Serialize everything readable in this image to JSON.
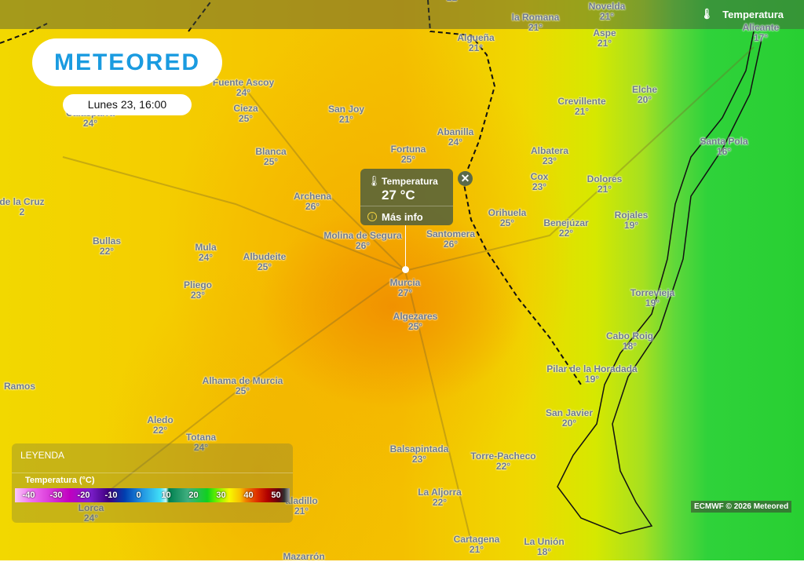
{
  "layer": {
    "label": "Temperatura",
    "icon": "thermometer-icon"
  },
  "logo": "METEORED",
  "date": "Lunes 23, 16:00",
  "popup": {
    "title": "Temperatura",
    "value": "27 °C",
    "more": "Más info",
    "close": "✕"
  },
  "places": [
    {
      "name": "",
      "temp": "22°"
    },
    {
      "name": "la Romana",
      "temp": "21°"
    },
    {
      "name": "Novelda",
      "temp": "21°"
    },
    {
      "name": "Aspe",
      "temp": "21°"
    },
    {
      "name": "Algueña",
      "temp": "21°"
    },
    {
      "name": "Alicante",
      "temp": "17°"
    },
    {
      "name": "Fuente Ascoy",
      "temp": "24°"
    },
    {
      "name": "Cieza",
      "temp": "25°"
    },
    {
      "name": "Calasparra",
      "temp": "24°"
    },
    {
      "name": "San Joy",
      "temp": "21°"
    },
    {
      "name": "Abanilla",
      "temp": "24°"
    },
    {
      "name": "Crevillente",
      "temp": "21°"
    },
    {
      "name": "Elche",
      "temp": "20°"
    },
    {
      "name": "Santa Pola",
      "temp": "16°"
    },
    {
      "name": "Blanca",
      "temp": "25°"
    },
    {
      "name": "Fortuna",
      "temp": "25°"
    },
    {
      "name": "Albatera",
      "temp": "23°"
    },
    {
      "name": "Cox",
      "temp": "23°"
    },
    {
      "name": "Dolores",
      "temp": "21°"
    },
    {
      "name": "Archena",
      "temp": "26°"
    },
    {
      "name": "de la Cruz",
      "temp": "2"
    },
    {
      "name": "Orihuela",
      "temp": "25°"
    },
    {
      "name": "Benejúzar",
      "temp": "22°"
    },
    {
      "name": "Rojales",
      "temp": "19°"
    },
    {
      "name": "Bullas",
      "temp": "22°"
    },
    {
      "name": "Molina de Segura",
      "temp": "26°"
    },
    {
      "name": "Santomera",
      "temp": "26°"
    },
    {
      "name": "Mula",
      "temp": "24°"
    },
    {
      "name": "Albudeite",
      "temp": "25°"
    },
    {
      "name": "Murcia",
      "temp": "27°"
    },
    {
      "name": "Pliego",
      "temp": "23°"
    },
    {
      "name": "Torrevieja",
      "temp": "19°"
    },
    {
      "name": "Algezares",
      "temp": "25°"
    },
    {
      "name": "Cabo Roig",
      "temp": "18°"
    },
    {
      "name": "Pilar de la Horadada",
      "temp": "19°"
    },
    {
      "name": "Ramos",
      "temp": ""
    },
    {
      "name": "Alhama de Murcia",
      "temp": "25°"
    },
    {
      "name": "San Javier",
      "temp": "20°"
    },
    {
      "name": "Aledo",
      "temp": "22°"
    },
    {
      "name": "Totana",
      "temp": "24°"
    },
    {
      "name": "Balsapintada",
      "temp": "23°"
    },
    {
      "name": "Torre-Pacheco",
      "temp": "22°"
    },
    {
      "name": "La Aljorra",
      "temp": "22°"
    },
    {
      "name": "Lorca",
      "temp": "24°"
    },
    {
      "name": "aladillo",
      "temp": "21°"
    },
    {
      "name": "Cartagena",
      "temp": "21°"
    },
    {
      "name": "La Unión",
      "temp": "18°"
    },
    {
      "name": "Mazarrón",
      "temp": ""
    }
  ],
  "legend": {
    "title": "LEYENDA",
    "unit": "Temperatura (°C)",
    "ticks": [
      "-40",
      "-30",
      "-20",
      "-10",
      "0",
      "10",
      "20",
      "30",
      "40",
      "50"
    ]
  },
  "credit": "ECMWF © 2026 Meteored"
}
